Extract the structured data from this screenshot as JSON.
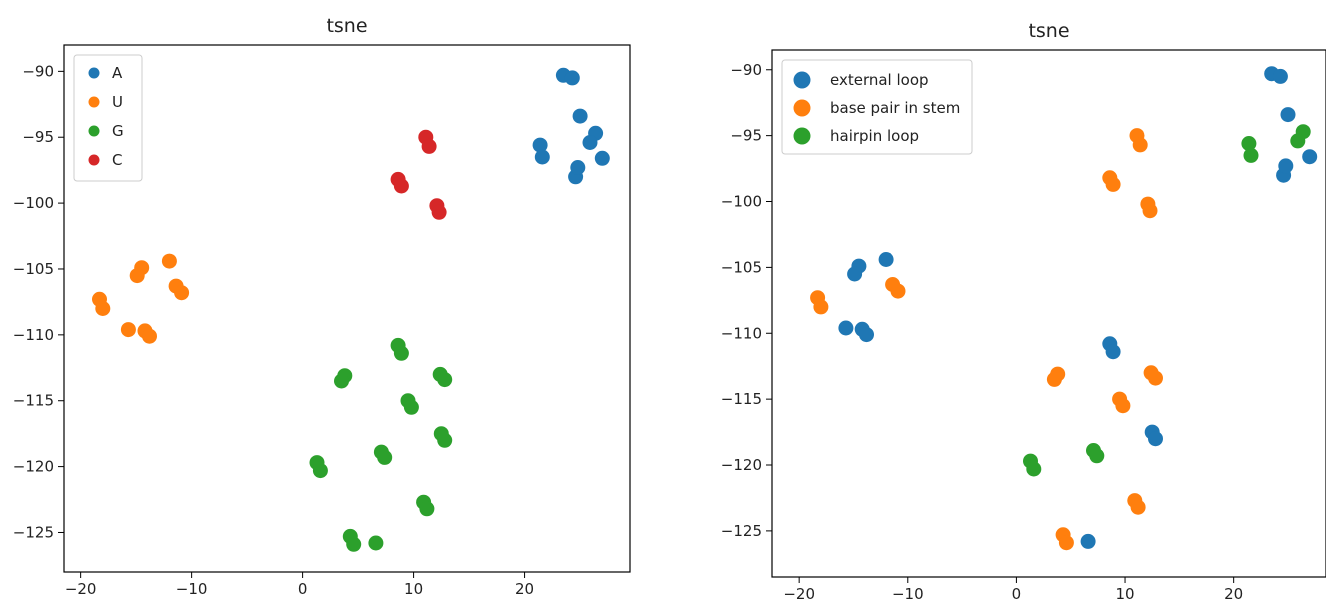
{
  "chart_data": [
    {
      "type": "scatter",
      "title": "tsne",
      "xlabel": "",
      "ylabel": "",
      "xlim": [
        -21.5,
        29.5
      ],
      "ylim": [
        -128,
        -88
      ],
      "xticks": [
        -20,
        -10,
        0,
        10,
        20
      ],
      "yticks": [
        -90,
        -95,
        -100,
        -105,
        -110,
        -115,
        -120,
        -125
      ],
      "legend_position": "top-left",
      "grid": false,
      "series": [
        {
          "name": "A",
          "color": "#1f77b4",
          "points": [
            [
              23.5,
              -90.3
            ],
            [
              24.3,
              -90.5
            ],
            [
              25.0,
              -93.4
            ],
            [
              21.4,
              -95.6
            ],
            [
              21.6,
              -96.5
            ],
            [
              26.4,
              -94.7
            ],
            [
              25.9,
              -95.4
            ],
            [
              27.0,
              -96.6
            ],
            [
              24.6,
              -98.0
            ],
            [
              24.8,
              -97.3
            ]
          ]
        },
        {
          "name": "U",
          "color": "#ff7f0e",
          "points": [
            [
              -14.5,
              -104.9
            ],
            [
              -14.9,
              -105.5
            ],
            [
              -12.0,
              -104.4
            ],
            [
              -11.4,
              -106.3
            ],
            [
              -10.9,
              -106.8
            ],
            [
              -18.3,
              -107.3
            ],
            [
              -18.0,
              -108.0
            ],
            [
              -15.7,
              -109.6
            ],
            [
              -14.2,
              -109.7
            ],
            [
              -13.8,
              -110.1
            ]
          ]
        },
        {
          "name": "G",
          "color": "#2ca02c",
          "points": [
            [
              8.6,
              -110.8
            ],
            [
              8.9,
              -111.4
            ],
            [
              3.8,
              -113.1
            ],
            [
              3.5,
              -113.5
            ],
            [
              12.4,
              -113.0
            ],
            [
              12.8,
              -113.4
            ],
            [
              9.5,
              -115.0
            ],
            [
              9.8,
              -115.5
            ],
            [
              12.5,
              -117.5
            ],
            [
              12.8,
              -118.0
            ],
            [
              7.1,
              -118.9
            ],
            [
              7.4,
              -119.3
            ],
            [
              1.3,
              -119.7
            ],
            [
              1.6,
              -120.3
            ],
            [
              10.9,
              -122.7
            ],
            [
              11.2,
              -123.2
            ],
            [
              4.3,
              -125.3
            ],
            [
              4.6,
              -125.9
            ],
            [
              6.6,
              -125.8
            ]
          ]
        },
        {
          "name": "C",
          "color": "#d62728",
          "points": [
            [
              11.1,
              -95.0
            ],
            [
              11.4,
              -95.7
            ],
            [
              8.6,
              -98.2
            ],
            [
              8.9,
              -98.7
            ],
            [
              12.1,
              -100.2
            ],
            [
              12.3,
              -100.7
            ]
          ]
        }
      ]
    },
    {
      "type": "scatter",
      "title": "tsne",
      "xlabel": "",
      "ylabel": "",
      "xlim": [
        -22.5,
        28.5
      ],
      "ylim": [
        -128.5,
        -88.5
      ],
      "xticks": [
        -20,
        -10,
        0,
        10,
        20
      ],
      "yticks": [
        -90,
        -95,
        -100,
        -105,
        -110,
        -115,
        -120,
        -125
      ],
      "legend_position": "top-left",
      "grid": false,
      "series": [
        {
          "name": "external loop",
          "color": "#1f77b4",
          "points": [
            [
              23.5,
              -90.3
            ],
            [
              24.3,
              -90.5
            ],
            [
              25.0,
              -93.4
            ],
            [
              24.6,
              -98.0
            ],
            [
              24.8,
              -97.3
            ],
            [
              27.0,
              -96.6
            ],
            [
              -14.5,
              -104.9
            ],
            [
              -14.9,
              -105.5
            ],
            [
              -12.0,
              -104.4
            ],
            [
              -15.7,
              -109.6
            ],
            [
              -14.2,
              -109.7
            ],
            [
              -13.8,
              -110.1
            ],
            [
              8.6,
              -110.8
            ],
            [
              8.9,
              -111.4
            ],
            [
              12.5,
              -117.5
            ],
            [
              12.8,
              -118.0
            ],
            [
              6.6,
              -125.8
            ]
          ]
        },
        {
          "name": "base pair in stem",
          "color": "#ff7f0e",
          "points": [
            [
              11.1,
              -95.0
            ],
            [
              11.4,
              -95.7
            ],
            [
              8.6,
              -98.2
            ],
            [
              8.9,
              -98.7
            ],
            [
              12.1,
              -100.2
            ],
            [
              12.3,
              -100.7
            ],
            [
              -11.4,
              -106.3
            ],
            [
              -10.9,
              -106.8
            ],
            [
              -18.3,
              -107.3
            ],
            [
              -18.0,
              -108.0
            ],
            [
              3.8,
              -113.1
            ],
            [
              3.5,
              -113.5
            ],
            [
              12.4,
              -113.0
            ],
            [
              12.8,
              -113.4
            ],
            [
              9.5,
              -115.0
            ],
            [
              9.8,
              -115.5
            ],
            [
              10.9,
              -122.7
            ],
            [
              11.2,
              -123.2
            ],
            [
              4.3,
              -125.3
            ],
            [
              4.6,
              -125.9
            ]
          ]
        },
        {
          "name": "hairpin loop",
          "color": "#2ca02c",
          "points": [
            [
              21.4,
              -95.6
            ],
            [
              21.6,
              -96.5
            ],
            [
              26.4,
              -94.7
            ],
            [
              25.9,
              -95.4
            ],
            [
              7.1,
              -118.9
            ],
            [
              7.4,
              -119.3
            ],
            [
              1.3,
              -119.7
            ],
            [
              1.6,
              -120.3
            ]
          ]
        }
      ]
    }
  ]
}
